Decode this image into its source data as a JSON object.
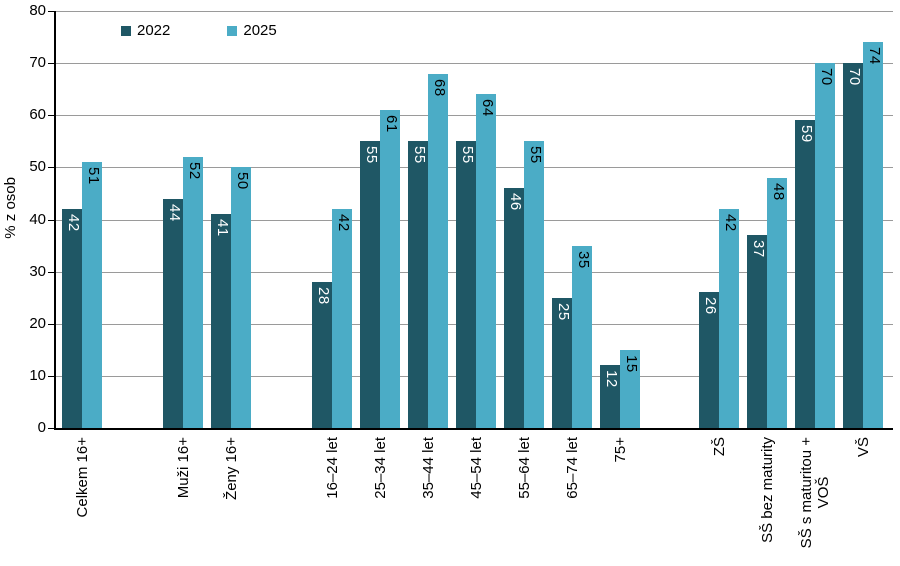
{
  "chart_data": {
    "type": "bar",
    "title": "",
    "xlabel": "",
    "ylabel": "% z osob",
    "ylim": [
      0,
      80
    ],
    "yticks": [
      0,
      10,
      20,
      30,
      40,
      50,
      60,
      70,
      80
    ],
    "grid": true,
    "legend_position": "top-left-inside",
    "categories": [
      "Celkem 16+",
      "Muži 16+",
      "Ženy 16+",
      "16–24 let",
      "25–34 let",
      "35–44 let",
      "45–54 let",
      "55–64 let",
      "65–74 let",
      "75+",
      "ZŠ",
      "SŠ bez maturity",
      "SŠ s maturitou +\nVOŠ",
      "VŠ"
    ],
    "series": [
      {
        "name": "2022",
        "color": "#1F5765",
        "label_color": "#FFFFFF",
        "values": [
          42,
          44,
          41,
          28,
          55,
          55,
          55,
          46,
          25,
          12,
          26,
          37,
          59,
          70
        ]
      },
      {
        "name": "2025",
        "color": "#4BACC6",
        "label_color": "#000000",
        "values": [
          51,
          52,
          50,
          42,
          61,
          68,
          64,
          55,
          35,
          15,
          42,
          48,
          70,
          74
        ]
      }
    ],
    "axis_color": "#000000",
    "gridline_color": "#9A9A9A",
    "value_labels_inside_bar_top": true
  }
}
